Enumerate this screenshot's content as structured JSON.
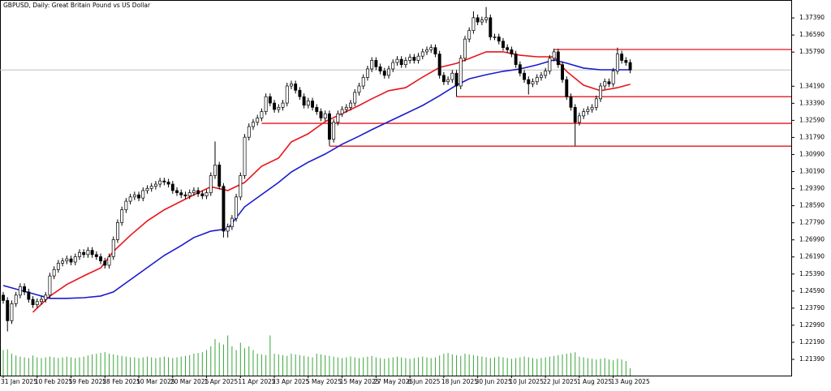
{
  "chart_data": {
    "type": "candlestick",
    "title": "GBPUSD, Daily:  Great Britain Pound vs US Dollar",
    "categories": [
      "31 Jan 2025",
      null,
      null,
      null,
      null,
      null,
      null,
      null,
      "10 Feb 2025",
      null,
      null,
      null,
      null,
      null,
      null,
      null,
      "19 Feb 2025",
      null,
      null,
      null,
      null,
      null,
      null,
      null,
      "28 Feb 2025",
      null,
      null,
      null,
      null,
      null,
      null,
      null,
      "10 Mar 2025",
      null,
      null,
      null,
      null,
      null,
      null,
      null,
      "20 Mar 2025",
      null,
      null,
      null,
      null,
      null,
      null,
      null,
      "1 Apr 2025",
      null,
      null,
      null,
      null,
      null,
      null,
      null,
      "11 Apr 2025",
      null,
      null,
      null,
      null,
      null,
      null,
      null,
      "23 Apr 2025",
      null,
      null,
      null,
      null,
      null,
      null,
      null,
      "5 May 2025",
      null,
      null,
      null,
      null,
      null,
      null,
      null,
      "15 May 2025",
      null,
      null,
      null,
      null,
      null,
      null,
      null,
      "27 May 2025",
      null,
      null,
      null,
      null,
      null,
      null,
      null,
      "6 Jun 2025",
      null,
      null,
      null,
      null,
      null,
      null,
      null,
      "18 Jun 2025",
      null,
      null,
      null,
      null,
      null,
      null,
      null,
      "30 Jun 2025",
      null,
      null,
      null,
      null,
      null,
      null,
      null,
      "10 Jul 2025",
      null,
      null,
      null,
      null,
      null,
      null,
      null,
      "22 Jul 2025",
      null,
      null,
      null,
      null,
      null,
      null,
      null,
      "1 Aug 2025",
      null,
      null,
      null,
      null,
      null,
      null,
      null,
      "13 Aug 2025",
      null,
      null,
      null,
      null
    ],
    "open": [
      1.244,
      1.2415,
      1.232,
      1.24,
      1.244,
      1.248,
      1.2455,
      1.242,
      1.2395,
      1.241,
      1.242,
      1.244,
      1.253,
      1.256,
      1.259,
      1.26,
      1.261,
      1.2595,
      1.262,
      1.264,
      1.263,
      1.265,
      1.263,
      1.262,
      1.26,
      1.258,
      1.262,
      1.27,
      1.278,
      1.284,
      1.288,
      1.29,
      1.291,
      1.2895,
      1.293,
      1.294,
      1.295,
      1.296,
      1.2975,
      1.297,
      1.296,
      1.293,
      1.292,
      1.291,
      1.2905,
      1.292,
      1.293,
      1.2915,
      1.2905,
      1.292,
      1.3,
      1.305,
      1.295,
      1.274,
      1.276,
      1.28,
      1.29,
      1.3,
      1.318,
      1.323,
      1.325,
      1.327,
      1.33,
      1.337,
      1.334,
      1.331,
      1.332,
      1.334,
      1.342,
      1.343,
      1.34,
      1.337,
      1.333,
      1.335,
      1.332,
      1.33,
      1.327,
      1.329,
      1.317,
      1.325,
      1.329,
      1.331,
      1.332,
      1.334,
      1.339,
      1.342,
      1.346,
      1.35,
      1.354,
      1.351,
      1.349,
      1.347,
      1.35,
      1.353,
      1.3545,
      1.352,
      1.354,
      1.3555,
      1.354,
      1.356,
      1.358,
      1.359,
      1.36,
      1.357,
      1.347,
      1.344,
      1.345,
      1.348,
      1.342,
      1.355,
      1.364,
      1.368,
      1.374,
      1.372,
      1.373,
      1.374,
      1.365,
      1.365,
      1.363,
      1.36,
      1.359,
      1.357,
      1.352,
      1.348,
      1.345,
      1.343,
      1.344,
      1.346,
      1.347,
      1.349,
      1.355,
      1.358,
      1.352,
      1.345,
      1.337,
      1.332,
      1.325,
      1.328,
      1.33,
      1.331,
      1.332,
      1.336,
      1.342,
      1.344,
      1.343,
      1.349,
      1.357,
      1.354,
      1.353
    ],
    "high": [
      1.2455,
      1.243,
      1.2415,
      1.2455,
      1.2495,
      1.2495,
      1.247,
      1.2435,
      1.2425,
      1.2435,
      1.2455,
      1.2545,
      1.2575,
      1.2605,
      1.2615,
      1.2625,
      1.2625,
      1.2635,
      1.2655,
      1.2655,
      1.2665,
      1.2665,
      1.2645,
      1.2635,
      1.2615,
      1.2635,
      1.2715,
      1.2795,
      1.2855,
      1.2895,
      1.2915,
      1.2925,
      1.2925,
      1.2945,
      1.2955,
      1.2965,
      1.2975,
      1.299,
      1.299,
      1.2985,
      1.2975,
      1.2945,
      1.2935,
      1.2925,
      1.2935,
      1.2945,
      1.2945,
      1.293,
      1.2935,
      1.3015,
      1.316,
      1.3065,
      1.2965,
      1.2775,
      1.2815,
      1.2915,
      1.3015,
      1.3195,
      1.3245,
      1.3265,
      1.3285,
      1.3315,
      1.3385,
      1.3385,
      1.3355,
      1.3335,
      1.3355,
      1.3435,
      1.3445,
      1.3445,
      1.3415,
      1.3385,
      1.3365,
      1.3365,
      1.3335,
      1.3315,
      1.3305,
      1.3305,
      1.3265,
      1.3305,
      1.3325,
      1.3335,
      1.3355,
      1.3405,
      1.3435,
      1.3475,
      1.3515,
      1.3555,
      1.3555,
      1.3525,
      1.3505,
      1.3515,
      1.3545,
      1.356,
      1.356,
      1.3555,
      1.357,
      1.357,
      1.3575,
      1.3595,
      1.3605,
      1.3615,
      1.3615,
      1.3585,
      1.3485,
      1.3465,
      1.3495,
      1.3495,
      1.3565,
      1.3655,
      1.3695,
      1.377,
      1.3755,
      1.3745,
      1.379,
      1.3755,
      1.3665,
      1.3665,
      1.3645,
      1.3615,
      1.3605,
      1.3585,
      1.3535,
      1.3495,
      1.3465,
      1.3455,
      1.3475,
      1.3485,
      1.3505,
      1.3565,
      1.3595,
      1.3595,
      1.3535,
      1.3465,
      1.3385,
      1.3335,
      1.3295,
      1.3315,
      1.3325,
      1.3335,
      1.3375,
      1.3435,
      1.3455,
      1.3455,
      1.3505,
      1.36,
      1.3585,
      1.3555,
      1.3545
    ],
    "low": [
      1.24,
      1.227,
      1.2305,
      1.2385,
      1.2425,
      1.244,
      1.2405,
      1.238,
      1.238,
      1.2395,
      1.2405,
      1.2425,
      1.2515,
      1.2545,
      1.2575,
      1.2585,
      1.258,
      1.258,
      1.2605,
      1.2615,
      1.2615,
      1.2615,
      1.2605,
      1.2585,
      1.2565,
      1.2565,
      1.2605,
      1.2685,
      1.2765,
      1.2825,
      1.2865,
      1.2885,
      1.288,
      1.288,
      1.2915,
      1.2925,
      1.2935,
      1.2945,
      1.2955,
      1.2945,
      1.2915,
      1.2905,
      1.2895,
      1.289,
      1.289,
      1.2905,
      1.29,
      1.289,
      1.289,
      1.2905,
      1.2985,
      1.2935,
      1.271,
      1.271,
      1.2745,
      1.2785,
      1.2885,
      1.2985,
      1.3165,
      1.3215,
      1.3235,
      1.3255,
      1.3285,
      1.3325,
      1.3295,
      1.3295,
      1.3305,
      1.3325,
      1.3405,
      1.3385,
      1.3355,
      1.3315,
      1.3315,
      1.3305,
      1.3285,
      1.3255,
      1.3255,
      1.314,
      1.3155,
      1.3235,
      1.3275,
      1.3295,
      1.3305,
      1.3325,
      1.3375,
      1.3405,
      1.3445,
      1.3485,
      1.3495,
      1.3475,
      1.3455,
      1.3455,
      1.3485,
      1.3515,
      1.3505,
      1.3505,
      1.3525,
      1.3525,
      1.3525,
      1.3545,
      1.3565,
      1.3575,
      1.3555,
      1.3455,
      1.3425,
      1.3425,
      1.3435,
      1.337,
      1.3405,
      1.3535,
      1.3625,
      1.3665,
      1.3705,
      1.3705,
      1.3715,
      1.3635,
      1.3635,
      1.3615,
      1.3585,
      1.3575,
      1.3555,
      1.3505,
      1.3465,
      1.3435,
      1.338,
      1.3415,
      1.3425,
      1.3445,
      1.3455,
      1.3475,
      1.3535,
      1.3505,
      1.3435,
      1.3355,
      1.3305,
      1.314,
      1.3235,
      1.3265,
      1.3285,
      1.3295,
      1.3305,
      1.3345,
      1.3405,
      1.3415,
      1.3415,
      1.3475,
      1.3525,
      1.3515,
      1.348
    ],
    "close": [
      1.2415,
      1.232,
      1.24,
      1.244,
      1.248,
      1.2455,
      1.242,
      1.2395,
      1.241,
      1.242,
      1.244,
      1.253,
      1.256,
      1.259,
      1.26,
      1.261,
      1.2595,
      1.262,
      1.264,
      1.263,
      1.265,
      1.263,
      1.262,
      1.26,
      1.258,
      1.262,
      1.27,
      1.278,
      1.284,
      1.288,
      1.29,
      1.291,
      1.2895,
      1.293,
      1.294,
      1.295,
      1.296,
      1.2975,
      1.297,
      1.296,
      1.293,
      1.292,
      1.291,
      1.2905,
      1.292,
      1.293,
      1.2915,
      1.2905,
      1.292,
      1.3,
      1.305,
      1.295,
      1.274,
      1.276,
      1.28,
      1.29,
      1.3,
      1.318,
      1.323,
      1.325,
      1.327,
      1.33,
      1.337,
      1.334,
      1.331,
      1.332,
      1.334,
      1.342,
      1.343,
      1.34,
      1.337,
      1.333,
      1.335,
      1.332,
      1.33,
      1.327,
      1.329,
      1.317,
      1.325,
      1.329,
      1.331,
      1.332,
      1.334,
      1.339,
      1.342,
      1.346,
      1.35,
      1.354,
      1.351,
      1.349,
      1.347,
      1.35,
      1.353,
      1.3545,
      1.352,
      1.354,
      1.3555,
      1.354,
      1.356,
      1.358,
      1.359,
      1.36,
      1.357,
      1.347,
      1.344,
      1.345,
      1.348,
      1.342,
      1.355,
      1.364,
      1.368,
      1.374,
      1.372,
      1.373,
      1.374,
      1.365,
      1.365,
      1.363,
      1.36,
      1.359,
      1.357,
      1.352,
      1.348,
      1.345,
      1.343,
      1.344,
      1.346,
      1.347,
      1.349,
      1.355,
      1.358,
      1.352,
      1.345,
      1.337,
      1.332,
      1.325,
      1.328,
      1.33,
      1.331,
      1.332,
      1.336,
      1.342,
      1.344,
      1.343,
      1.349,
      1.357,
      1.354,
      1.353,
      1.3495
    ],
    "volumes": [
      70,
      72,
      60,
      55,
      52,
      50,
      48,
      55,
      50,
      48,
      50,
      52,
      50,
      48,
      50,
      52,
      50,
      48,
      50,
      52,
      55,
      58,
      60,
      62,
      64,
      60,
      58,
      56,
      54,
      52,
      50,
      50,
      48,
      50,
      52,
      50,
      48,
      50,
      52,
      50,
      48,
      50,
      52,
      54,
      56,
      60,
      62,
      64,
      70,
      80,
      100,
      90,
      85,
      110,
      80,
      70,
      90,
      75,
      80,
      70,
      60,
      58,
      56,
      110,
      60,
      58,
      56,
      54,
      60,
      58,
      56,
      54,
      52,
      50,
      60,
      58,
      56,
      54,
      52,
      50,
      48,
      50,
      52,
      50,
      48,
      50,
      52,
      54,
      50,
      48,
      46,
      48,
      50,
      52,
      50,
      48,
      46,
      48,
      50,
      52,
      50,
      48,
      50,
      55,
      60,
      62,
      58,
      56,
      54,
      60,
      58,
      56,
      54,
      52,
      50,
      48,
      50,
      52,
      50,
      48,
      46,
      48,
      50,
      52,
      50,
      48,
      46,
      48,
      50,
      52,
      54,
      56,
      58,
      60,
      62,
      64,
      52,
      50,
      48,
      46,
      44,
      46,
      48,
      44,
      42,
      46,
      44,
      40,
      20
    ],
    "bull_color": "#ffffff",
    "bear_color": "#000000",
    "volume_color": "#3aa63a",
    "lines": [
      {
        "color": "#e8141b",
        "x": [
          7,
          11,
          15,
          19,
          23,
          26,
          30,
          34,
          38,
          42,
          45,
          49,
          53,
          57,
          61,
          65,
          68,
          72,
          76,
          80,
          84,
          87,
          91,
          95,
          99,
          103,
          107,
          110,
          114,
          118,
          122,
          126,
          130,
          133,
          137,
          141,
          145,
          148
        ],
        "values": [
          1.236,
          1.2435,
          1.249,
          1.253,
          1.2568,
          1.2645,
          1.272,
          1.2788,
          1.284,
          1.288,
          1.291,
          1.2948,
          1.293,
          1.2968,
          1.3044,
          1.3082,
          1.3158,
          1.3196,
          1.3253,
          1.3291,
          1.3329,
          1.336,
          1.3398,
          1.3412,
          1.3462,
          1.3507,
          1.3526,
          1.3549,
          1.358,
          1.358,
          1.3564,
          1.3557,
          1.3557,
          1.3488,
          1.3424,
          1.3398,
          1.3412,
          1.3428
        ]
      },
      {
        "color": "#1a1ad0",
        "x": [
          0,
          7,
          11,
          15,
          19,
          23,
          26,
          30,
          34,
          38,
          42,
          45,
          49,
          53,
          57,
          61,
          65,
          68,
          72,
          76,
          80,
          84,
          87,
          91,
          95,
          99,
          103,
          107,
          110,
          114,
          118,
          122,
          126,
          130,
          133,
          137,
          141,
          145,
          148
        ],
        "values": [
          1.2485,
          1.2447,
          1.2425,
          1.2425,
          1.2428,
          1.2436,
          1.2455,
          1.2512,
          1.2569,
          1.2626,
          1.2672,
          1.271,
          1.274,
          1.2751,
          1.2854,
          1.2911,
          1.2968,
          1.3017,
          1.3063,
          1.3101,
          1.3147,
          1.3185,
          1.3215,
          1.3253,
          1.3291,
          1.3329,
          1.3375,
          1.3424,
          1.3454,
          1.3473,
          1.3489,
          1.35,
          1.3519,
          1.3542,
          1.3527,
          1.3504,
          1.3496,
          1.3496,
          1.3496
        ]
      }
    ],
    "levels": [
      {
        "value": 1.3591,
        "from": 130,
        "color": "#e8141b"
      },
      {
        "value": 1.337,
        "from": 107,
        "color": "#e8141b"
      },
      {
        "value": 1.3245,
        "from": 61,
        "color": "#e8141b"
      },
      {
        "value": 1.3138,
        "from": 77,
        "color": "#e8141b"
      }
    ],
    "ylim": [
      1.2063,
      1.3823
    ],
    "yticks": [
      {
        "value": 1.2139,
        "label": "1.21390"
      },
      {
        "value": 1.2219,
        "label": "1.22190"
      },
      {
        "value": 1.2299,
        "label": "1.22990"
      },
      {
        "value": 1.2379,
        "label": "1.23790"
      },
      {
        "value": 1.2459,
        "label": "1.24590"
      },
      {
        "value": 1.2539,
        "label": "1.25390"
      },
      {
        "value": 1.2619,
        "label": "1.26190"
      },
      {
        "value": 1.2699,
        "label": "1.26990"
      },
      {
        "value": 1.2779,
        "label": "1.27790"
      },
      {
        "value": 1.2859,
        "label": "1.28590"
      },
      {
        "value": 1.2939,
        "label": "1.29390"
      },
      {
        "value": 1.3019,
        "label": "1.30190"
      },
      {
        "value": 1.3099,
        "label": "1.30990"
      },
      {
        "value": 1.3179,
        "label": "1.31790"
      },
      {
        "value": 1.3259,
        "label": "1.32590"
      },
      {
        "value": 1.3339,
        "label": "1.33390"
      },
      {
        "value": 1.3419,
        "label": "1.34190"
      },
      {
        "value": 1.3579,
        "label": "1.35790"
      },
      {
        "value": 1.3659,
        "label": "1.36590"
      },
      {
        "value": 1.3739,
        "label": "1.37390"
      }
    ],
    "grid": false
  }
}
